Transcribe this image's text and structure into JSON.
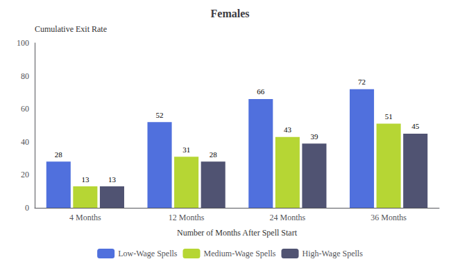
{
  "chart_data": {
    "type": "bar",
    "title": "Females",
    "xlabel": "Number of Months After Spell Start",
    "ylabel": "Cumulative Exit Rate",
    "categories": [
      "4 Months",
      "12 Months",
      "24 Months",
      "36 Months"
    ],
    "series": [
      {
        "name": "Low-Wage Spells",
        "values": [
          28,
          52,
          66,
          72
        ]
      },
      {
        "name": "Medium-Wage Spells",
        "values": [
          13,
          31,
          43,
          51
        ]
      },
      {
        "name": "High-Wage Spells",
        "values": [
          13,
          28,
          39,
          45
        ]
      }
    ],
    "ylim": [
      0,
      100
    ],
    "yticks": [
      0,
      20,
      40,
      60,
      80,
      100
    ],
    "grid": false,
    "legend": "bottom",
    "data_labels": true
  }
}
